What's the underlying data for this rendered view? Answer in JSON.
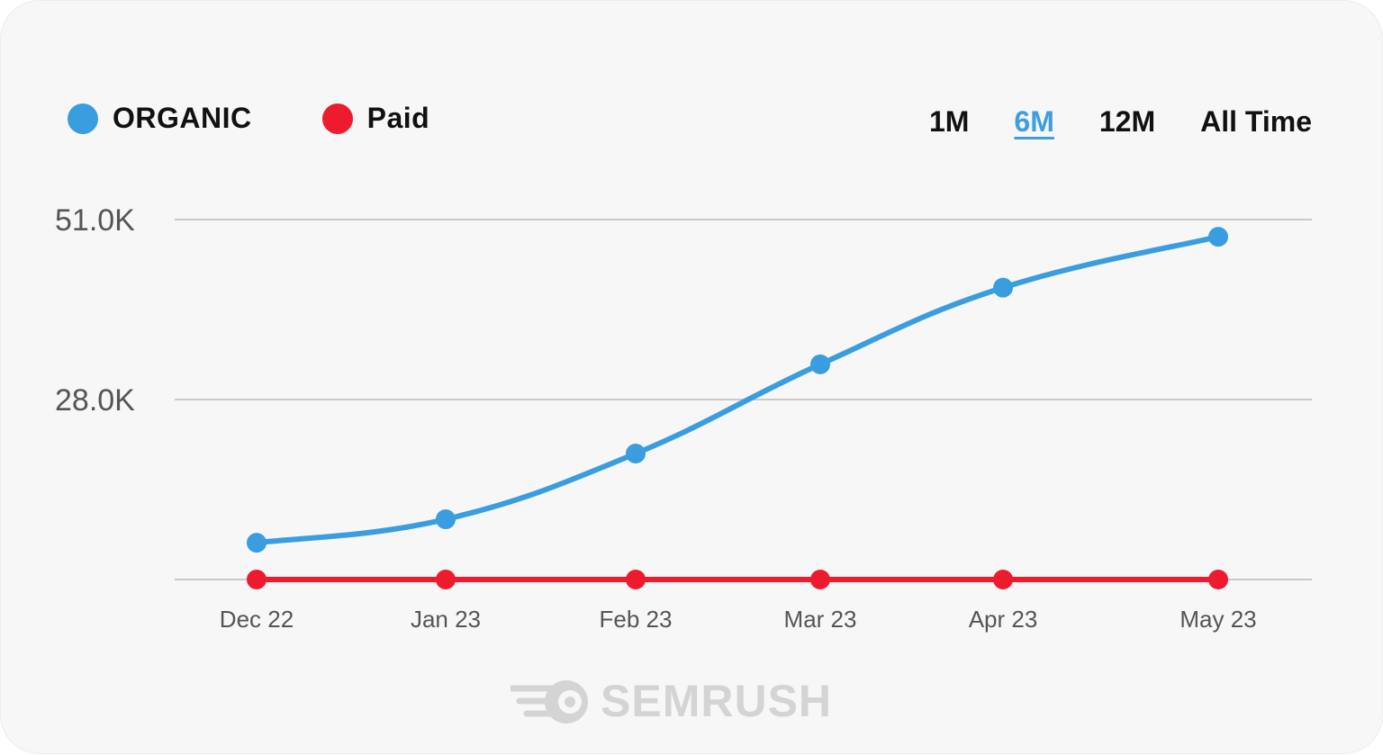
{
  "legend": [
    {
      "label": "ORGANIC",
      "color": "#3a9de0"
    },
    {
      "label": "Paid",
      "color": "#ee1b2e"
    }
  ],
  "ranges": {
    "options": [
      "1M",
      "6M",
      "12M",
      "All Time"
    ],
    "selected": "6M"
  },
  "logo": {
    "text": "SEMRUSH",
    "icon": "semrush-fireball-icon"
  },
  "chart_data": {
    "type": "line",
    "categories": [
      "Dec 22",
      "Jan 23",
      "Feb 23",
      "Mar 23",
      "Apr 23",
      "May 23"
    ],
    "y_ticks": [
      {
        "value": 28000,
        "label": "28.0K"
      },
      {
        "value": 51000,
        "label": "51.0K"
      }
    ],
    "ylim": [
      5000,
      51000
    ],
    "grid": true,
    "legend_position": "top-left",
    "series": [
      {
        "name": "ORGANIC",
        "color": "#3a9de0",
        "values": [
          9700,
          12700,
          21100,
          32500,
          42300,
          48800
        ]
      },
      {
        "name": "Paid",
        "color": "#ee1b2e",
        "values": [
          5000,
          5000,
          5000,
          5000,
          5000,
          5000
        ]
      }
    ]
  }
}
